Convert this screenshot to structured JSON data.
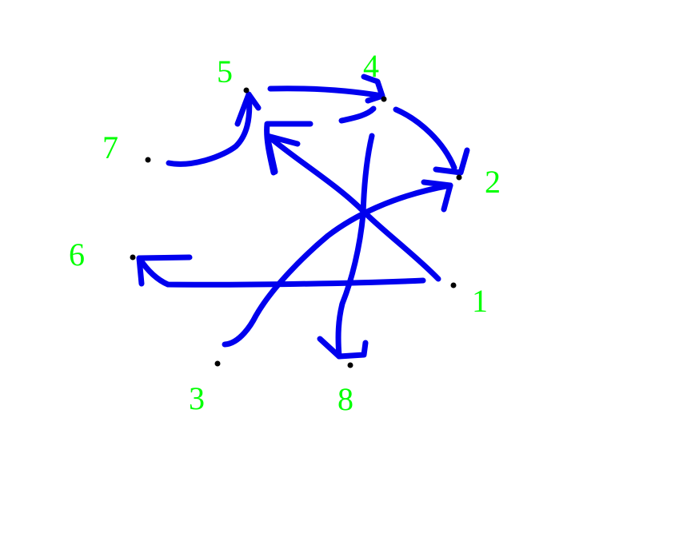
{
  "colors": {
    "background": "#ffffff",
    "label": "#00ff00",
    "arrow": "#0000ee",
    "dot": "#000000"
  },
  "nodes": [
    {
      "id": "1",
      "label": "1"
    },
    {
      "id": "2",
      "label": "2"
    },
    {
      "id": "3",
      "label": "3"
    },
    {
      "id": "4",
      "label": "4"
    },
    {
      "id": "5",
      "label": "5"
    },
    {
      "id": "6",
      "label": "6"
    },
    {
      "id": "7",
      "label": "7"
    },
    {
      "id": "8",
      "label": "8"
    }
  ],
  "edges": [
    {
      "from": "7",
      "to": "5"
    },
    {
      "from": "5",
      "to": "4"
    },
    {
      "from": "4",
      "to": "5"
    },
    {
      "from": "4",
      "to": "2"
    },
    {
      "from": "1",
      "to": "5"
    },
    {
      "from": "3",
      "to": "2"
    },
    {
      "from": "1",
      "to": "6"
    },
    {
      "from": "5",
      "to": "8"
    }
  ]
}
